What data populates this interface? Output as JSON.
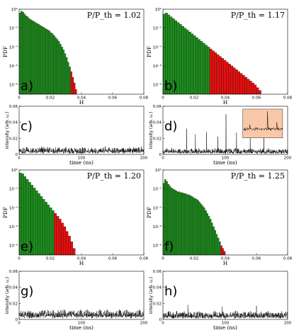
{
  "colors": {
    "green": "#1e8c1e",
    "red": "#e31010",
    "inset": "#f8c8a8",
    "line": "#000000"
  },
  "chart_data": [
    {
      "id": "a",
      "type": "bar",
      "panel_label": "a)",
      "ratio": "P/P_th = 1.02",
      "xlabel": "H",
      "ylabel": "PDF",
      "xlim": [
        0,
        0.08
      ],
      "xticks": [
        "0",
        "0.02",
        "0.04",
        "0.06",
        "0.08"
      ],
      "yticks": [
        "10⁰",
        "10⁻²",
        "10⁻⁴",
        "10⁻⁶",
        "10⁻⁸"
      ],
      "ylim_exp": [
        -9,
        0
      ],
      "bin_width": 0.001,
      "threshold": 0.033,
      "log10_values": [
        -0.4,
        -0.2,
        -0.3,
        -0.5,
        -0.7,
        -0.8,
        -1.0,
        -1.1,
        -1.2,
        -1.3,
        -1.4,
        -1.5,
        -1.6,
        -1.7,
        -1.8,
        -1.9,
        -2.0,
        -2.1,
        -2.2,
        -2.3,
        -2.5,
        -2.6,
        -2.8,
        -3.0,
        -3.2,
        -3.4,
        -3.7,
        -4.0,
        -4.3,
        -4.7,
        -5.1,
        -5.6,
        -6.1,
        -6.6,
        -7.2,
        -7.8,
        -8.5
      ]
    },
    {
      "id": "b",
      "type": "bar",
      "panel_label": "b)",
      "ratio": "P/P_th = 1.17",
      "xlabel": "H",
      "ylabel": "PDF",
      "xlim": [
        0,
        0.08
      ],
      "xticks": [
        "0",
        "0.02",
        "0.04",
        "0.06",
        "0.08"
      ],
      "yticks": [
        "10⁰",
        "10⁻²",
        "10⁻⁴",
        "10⁻⁶",
        "10⁻⁸"
      ],
      "ylim_exp": [
        -9,
        0
      ],
      "bin_width": 0.0015,
      "threshold": 0.029,
      "log10_values": [
        -0.5,
        -0.4,
        -0.6,
        -0.8,
        -1.0,
        -1.2,
        -1.4,
        -1.6,
        -1.8,
        -2.0,
        -2.2,
        -2.4,
        -2.6,
        -2.8,
        -3.0,
        -3.2,
        -3.4,
        -3.6,
        -3.8,
        -4.0,
        -4.2,
        -4.4,
        -4.6,
        -4.8,
        -5.0,
        -5.2,
        -5.4,
        -5.6,
        -5.8,
        -6.0,
        -6.2,
        -6.4,
        -6.6,
        -6.8,
        -7.0,
        -7.2,
        -7.4,
        -7.6,
        -7.8,
        -8.0,
        -8.3,
        -8.6
      ]
    },
    {
      "id": "c",
      "type": "line",
      "panel_label": "c)",
      "xlabel": "time (ns)",
      "ylabel": "Intensity (arb. u.)",
      "xlim": [
        0,
        200
      ],
      "ylim": [
        0,
        0.06
      ],
      "xticks": [
        "0",
        "100",
        "200"
      ],
      "yticks": [
        "0",
        "0.02",
        "0.04",
        "0.06"
      ],
      "baseline": 0.005,
      "noise": 0.006,
      "spikes": []
    },
    {
      "id": "d",
      "type": "line",
      "panel_label": "d)",
      "xlabel": "time (ns)",
      "ylabel": "Intensity (arb. u.)",
      "xlim": [
        0,
        200
      ],
      "ylim": [
        0,
        0.06
      ],
      "xticks": [
        "0",
        "100",
        "200"
      ],
      "yticks": [
        "0",
        "0.02",
        "0.04",
        "0.06"
      ],
      "baseline": 0.004,
      "noise": 0.005,
      "spikes": [
        [
          38,
          0.032
        ],
        [
          52,
          0.025
        ],
        [
          70,
          0.028
        ],
        [
          88,
          0.022
        ],
        [
          101,
          0.05
        ],
        [
          118,
          0.027
        ],
        [
          140,
          0.032
        ],
        [
          162,
          0.024
        ]
      ],
      "inset": {
        "spikes": [
          [
            0.18,
            0.45
          ],
          [
            0.62,
            0.95
          ],
          [
            0.85,
            0.55
          ]
        ]
      }
    },
    {
      "id": "e",
      "type": "bar",
      "panel_label": "e)",
      "ratio": "P/P_th = 1.20",
      "xlabel": "H",
      "ylabel": "PDF",
      "xlim": [
        0,
        0.08
      ],
      "xticks": [
        "0",
        "0.02",
        "0.04",
        "0.06",
        "0.08"
      ],
      "yticks": [
        "10⁰",
        "10⁻²",
        "10⁻⁴",
        "10⁻⁶",
        "10⁻⁸"
      ],
      "ylim_exp": [
        -9,
        0
      ],
      "bin_width": 0.0015,
      "threshold": 0.022,
      "log10_values": [
        -0.3,
        -0.4,
        -0.7,
        -1.0,
        -1.3,
        -1.6,
        -1.9,
        -2.2,
        -2.5,
        -2.8,
        -3.1,
        -3.4,
        -3.7,
        -4.0,
        -4.3,
        -4.6,
        -4.9,
        -5.2,
        -5.6,
        -6.0,
        -6.5,
        -7.0,
        -7.6,
        -8.3
      ]
    },
    {
      "id": "f",
      "type": "bar",
      "panel_label": "f)",
      "ratio": "P/P_th = 1.25",
      "xlabel": "H",
      "ylabel": "PDF",
      "xlim": [
        0,
        0.08
      ],
      "xticks": [
        "0",
        "0.02",
        "0.04",
        "0.06",
        "0.08"
      ],
      "yticks": [
        "10⁰",
        "10⁻²",
        "10⁻⁴",
        "10⁻⁶",
        "10⁻⁸"
      ],
      "ylim_exp": [
        -9,
        0
      ],
      "bin_width": 0.001,
      "threshold": 0.037,
      "log10_values": [
        -1.4,
        -1.0,
        -1.2,
        -1.5,
        -1.7,
        -1.9,
        -2.0,
        -2.1,
        -2.2,
        -2.3,
        -2.3,
        -2.4,
        -2.4,
        -2.5,
        -2.5,
        -2.6,
        -2.6,
        -2.7,
        -2.8,
        -2.9,
        -3.0,
        -3.1,
        -3.2,
        -3.4,
        -3.6,
        -3.8,
        -4.0,
        -4.3,
        -4.6,
        -4.9,
        -5.2,
        -5.6,
        -6.0,
        -6.4,
        -6.8,
        -7.2,
        -7.6,
        -8.0,
        -8.3,
        -8.6
      ]
    },
    {
      "id": "g",
      "type": "line",
      "panel_label": "g)",
      "xlabel": "time (ns)",
      "ylabel": "Intensity (arb. u.)",
      "xlim": [
        0,
        200
      ],
      "ylim": [
        0,
        0.06
      ],
      "xticks": [
        "0",
        "100",
        "200"
      ],
      "yticks": [
        "0",
        "0.02",
        "0.04",
        "0.06"
      ],
      "baseline": 0.006,
      "noise": 0.008,
      "spikes": []
    },
    {
      "id": "h",
      "type": "line",
      "panel_label": "h)",
      "xlabel": "time (ns)",
      "ylabel": "Intensity (arb. u.)",
      "xlim": [
        0,
        200
      ],
      "ylim": [
        0,
        0.06
      ],
      "xticks": [
        "0",
        "100",
        "200"
      ],
      "yticks": [
        "0",
        "0.02",
        "0.04",
        "0.06"
      ],
      "baseline": 0.005,
      "noise": 0.007,
      "spikes": [
        [
          40,
          0.018
        ],
        [
          95,
          0.016
        ],
        [
          150,
          0.017
        ]
      ]
    }
  ]
}
